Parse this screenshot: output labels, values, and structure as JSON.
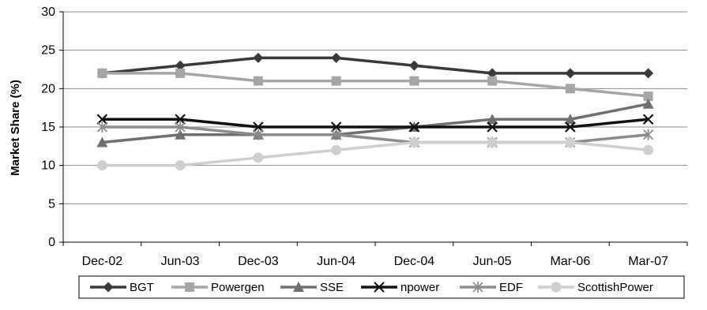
{
  "chart_data": {
    "type": "line",
    "title": "",
    "xlabel": "",
    "ylabel": "Market Share (%)",
    "ylim": [
      0,
      30
    ],
    "yticks": [
      0,
      5,
      10,
      15,
      20,
      25,
      30
    ],
    "grid": true,
    "legend_position": "bottom",
    "categories": [
      "Dec-02",
      "Jun-03",
      "Dec-03",
      "Jun-04",
      "Dec-04",
      "Jun-05",
      "Mar-06",
      "Mar-07"
    ],
    "series": [
      {
        "name": "BGT",
        "values": [
          22,
          23,
          24,
          24,
          23,
          22,
          22,
          22
        ],
        "color": "#3a3a3a",
        "marker": "diamond"
      },
      {
        "name": "Powergen",
        "values": [
          22,
          22,
          21,
          21,
          21,
          21,
          20,
          19
        ],
        "color": "#a6a6a6",
        "marker": "square"
      },
      {
        "name": "SSE",
        "values": [
          13,
          14,
          14,
          14,
          15,
          16,
          16,
          18
        ],
        "color": "#707070",
        "marker": "triangle"
      },
      {
        "name": "npower",
        "values": [
          16,
          16,
          15,
          15,
          15,
          15,
          15,
          16
        ],
        "color": "#111111",
        "marker": "x"
      },
      {
        "name": "EDF",
        "values": [
          15,
          15,
          14,
          14,
          13,
          13,
          13,
          14
        ],
        "color": "#8c8c8c",
        "marker": "asterisk"
      },
      {
        "name": "ScottishPower",
        "values": [
          10,
          10,
          11,
          12,
          13,
          13,
          13,
          12
        ],
        "color": "#cfcfcf",
        "marker": "circle"
      }
    ]
  }
}
